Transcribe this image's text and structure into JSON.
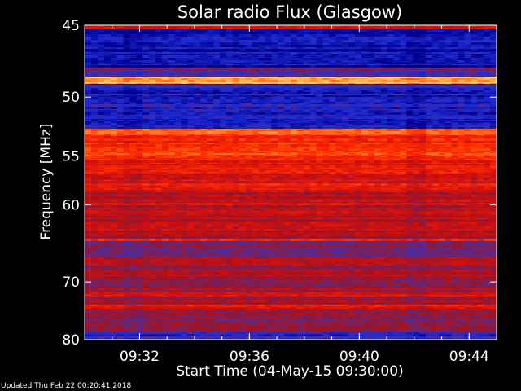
{
  "chart_data": {
    "type": "heatmap",
    "title": "Solar radio Flux (Glasgow)",
    "xlabel": "Start Time (04-May-15 09:30:00)",
    "ylabel": "Frequency [MHz]",
    "x_ticks": [
      "09:32",
      "09:36",
      "09:40",
      "09:44"
    ],
    "x_tick_minutes": [
      2,
      6,
      10,
      14
    ],
    "xlim_minutes": [
      0,
      15
    ],
    "y_ticks": [
      45,
      50,
      55,
      60,
      70,
      80
    ],
    "ylim": [
      45,
      80
    ],
    "y_scale": "reciprocal",
    "colormap": [
      "#00008c",
      "#1e2ad2",
      "#5a2a8c",
      "#9a1428",
      "#d01010",
      "#ff2a00",
      "#ff7a1e",
      "#ffd27a"
    ],
    "frequency_bands": [
      {
        "f_low": 45.0,
        "f_high": 45.3,
        "level": 0.55
      },
      {
        "f_low": 45.3,
        "f_high": 47.8,
        "level": 0.08
      },
      {
        "f_low": 47.8,
        "f_high": 48.5,
        "level": 0.3
      },
      {
        "f_low": 48.5,
        "f_high": 49.0,
        "level": 0.98
      },
      {
        "f_low": 49.0,
        "f_high": 52.5,
        "level": 0.12
      },
      {
        "f_low": 52.5,
        "f_high": 53.0,
        "level": 0.85
      },
      {
        "f_low": 53.0,
        "f_high": 55.5,
        "level": 0.72
      },
      {
        "f_low": 55.5,
        "f_high": 58.5,
        "level": 0.6
      },
      {
        "f_low": 58.5,
        "f_high": 61.0,
        "level": 0.55
      },
      {
        "f_low": 61.0,
        "f_high": 64.0,
        "level": 0.5
      },
      {
        "f_low": 64.0,
        "f_high": 64.4,
        "level": 0.75
      },
      {
        "f_low": 64.4,
        "f_high": 66.5,
        "level": 0.35
      },
      {
        "f_low": 66.5,
        "f_high": 71.5,
        "level": 0.45
      },
      {
        "f_low": 71.5,
        "f_high": 72.3,
        "level": 0.6
      },
      {
        "f_low": 72.3,
        "f_high": 73.5,
        "level": 0.4
      },
      {
        "f_low": 73.5,
        "f_high": 74.5,
        "level": 0.65
      },
      {
        "f_low": 74.5,
        "f_high": 78.5,
        "level": 0.4
      },
      {
        "f_low": 78.5,
        "f_high": 80.0,
        "level": 0.2
      }
    ],
    "colorbar": "none",
    "grid": false
  },
  "footer": {
    "updated": "Updated Thu Feb 22 00:20:41 2018"
  }
}
